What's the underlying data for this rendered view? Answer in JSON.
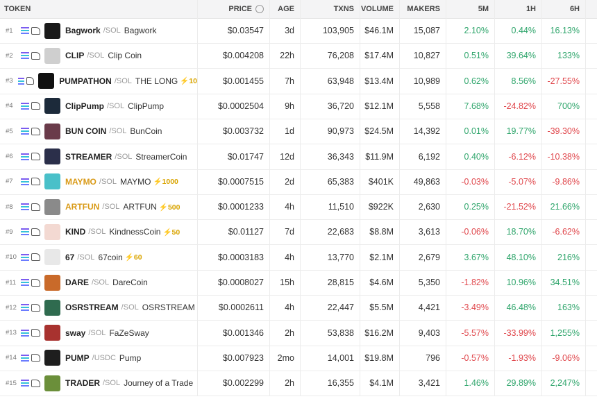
{
  "header": {
    "token": "TOKEN",
    "price": "PRICE",
    "age": "AGE",
    "txns": "TXNS",
    "volume": "VOLUME",
    "makers": "MAKERS",
    "m5": "5M",
    "h1": "1H",
    "h6": "6H"
  },
  "rows": [
    {
      "rank": "#1",
      "symbol": "Bagwork",
      "quote": "/SOL",
      "name": "Bagwork",
      "boost": null,
      "highlight": false,
      "price": "$0.03547",
      "age": "3d",
      "txns": "103,905",
      "volume": "$46.1M",
      "makers": "15,087",
      "m5": "2.10%",
      "h1": "0.44%",
      "h6": "16.13%"
    },
    {
      "rank": "#2",
      "symbol": "CLIP",
      "quote": "/SOL",
      "name": "Clip Coin",
      "boost": null,
      "highlight": false,
      "price": "$0.004208",
      "age": "22h",
      "txns": "76,208",
      "volume": "$17.4M",
      "makers": "10,827",
      "m5": "0.51%",
      "h1": "39.64%",
      "h6": "133%"
    },
    {
      "rank": "#3",
      "symbol": "PUMPATHON",
      "quote": "/SOL",
      "name": "THE LONG",
      "boost": "10",
      "highlight": false,
      "price": "$0.001455",
      "age": "7h",
      "txns": "63,948",
      "volume": "$13.4M",
      "makers": "10,989",
      "m5": "0.62%",
      "h1": "8.56%",
      "h6": "-27.55%"
    },
    {
      "rank": "#4",
      "symbol": "ClipPump",
      "quote": "/SOL",
      "name": "ClipPump",
      "boost": null,
      "highlight": false,
      "price": "$0.0002504",
      "age": "9h",
      "txns": "36,720",
      "volume": "$12.1M",
      "makers": "5,558",
      "m5": "7.68%",
      "h1": "-24.82%",
      "h6": "700%"
    },
    {
      "rank": "#5",
      "symbol": "BUN COIN",
      "quote": "/SOL",
      "name": "BunCoin",
      "boost": null,
      "highlight": false,
      "price": "$0.003732",
      "age": "1d",
      "txns": "90,973",
      "volume": "$24.5M",
      "makers": "14,392",
      "m5": "0.01%",
      "h1": "19.77%",
      "h6": "-39.30%"
    },
    {
      "rank": "#6",
      "symbol": "STREAMER",
      "quote": "/SOL",
      "name": "StreamerCoin",
      "boost": null,
      "highlight": false,
      "price": "$0.01747",
      "age": "12d",
      "txns": "36,343",
      "volume": "$11.9M",
      "makers": "6,192",
      "m5": "0.40%",
      "h1": "-6.12%",
      "h6": "-10.38%"
    },
    {
      "rank": "#7",
      "symbol": "MAYMO",
      "quote": "/SOL",
      "name": "MAYMO",
      "boost": "1000",
      "highlight": true,
      "price": "$0.0007515",
      "age": "2d",
      "txns": "65,383",
      "volume": "$401K",
      "makers": "49,863",
      "m5": "-0.03%",
      "h1": "-5.07%",
      "h6": "-9.86%"
    },
    {
      "rank": "#8",
      "symbol": "ARTFUN",
      "quote": "/SOL",
      "name": "ARTFUN",
      "boost": "500",
      "highlight": true,
      "price": "$0.0001233",
      "age": "4h",
      "txns": "11,510",
      "volume": "$922K",
      "makers": "2,630",
      "m5": "0.25%",
      "h1": "-21.52%",
      "h6": "21.66%"
    },
    {
      "rank": "#9",
      "symbol": "KIND",
      "quote": "/SOL",
      "name": "KindnessCoin",
      "boost": "50",
      "highlight": false,
      "price": "$0.01127",
      "age": "7d",
      "txns": "22,683",
      "volume": "$8.8M",
      "makers": "3,613",
      "m5": "-0.06%",
      "h1": "18.70%",
      "h6": "-6.62%"
    },
    {
      "rank": "#10",
      "symbol": "67",
      "quote": "/SOL",
      "name": "67coin",
      "boost": "60",
      "highlight": false,
      "price": "$0.0003183",
      "age": "4h",
      "txns": "13,770",
      "volume": "$2.1M",
      "makers": "2,679",
      "m5": "3.67%",
      "h1": "48.10%",
      "h6": "216%"
    },
    {
      "rank": "#11",
      "symbol": "DARE",
      "quote": "/SOL",
      "name": "DareCoin",
      "boost": null,
      "highlight": false,
      "price": "$0.0008027",
      "age": "15h",
      "txns": "28,815",
      "volume": "$4.6M",
      "makers": "5,350",
      "m5": "-1.82%",
      "h1": "10.96%",
      "h6": "34.51%"
    },
    {
      "rank": "#12",
      "symbol": "OSRSTREAM",
      "quote": "/SOL",
      "name": "OSRSTREAM",
      "boost": null,
      "highlight": false,
      "price": "$0.0002611",
      "age": "4h",
      "txns": "22,447",
      "volume": "$5.5M",
      "makers": "4,421",
      "m5": "-3.49%",
      "h1": "46.48%",
      "h6": "163%"
    },
    {
      "rank": "#13",
      "symbol": "sway",
      "quote": "/SOL",
      "name": "FaZeSway",
      "boost": null,
      "highlight": false,
      "price": "$0.001346",
      "age": "2h",
      "txns": "53,838",
      "volume": "$16.2M",
      "makers": "9,403",
      "m5": "-5.57%",
      "h1": "-33.99%",
      "h6": "1,255%"
    },
    {
      "rank": "#14",
      "symbol": "PUMP",
      "quote": "/USDC",
      "name": "Pump",
      "boost": null,
      "highlight": false,
      "price": "$0.007923",
      "age": "2mo",
      "txns": "14,001",
      "volume": "$19.8M",
      "makers": "796",
      "m5": "-0.57%",
      "h1": "-1.93%",
      "h6": "-9.06%"
    },
    {
      "rank": "#15",
      "symbol": "TRADER",
      "quote": "/SOL",
      "name": "Journey of a Trade",
      "boost": null,
      "highlight": false,
      "price": "$0.002299",
      "age": "2h",
      "txns": "16,355",
      "volume": "$4.1M",
      "makers": "3,421",
      "m5": "1.46%",
      "h1": "29.89%",
      "h6": "2,247%"
    }
  ]
}
